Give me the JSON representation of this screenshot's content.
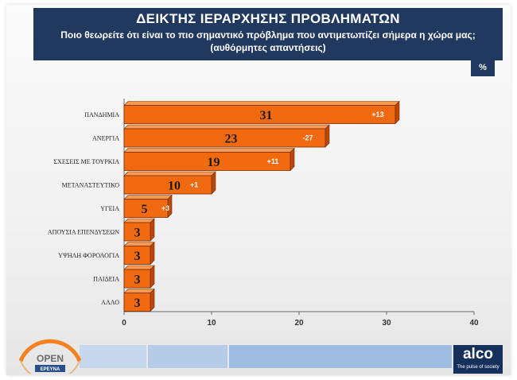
{
  "header": {
    "title": "ΔΕΙΚΤΗΣ ΙΕΡΑΡΧΗΣΗΣ ΠΡΟΒΛΗΜΑΤΩΝ",
    "subtitle": "Ποιο θεωρείτε ότι είναι το πιο σημαντικό πρόβλημα που αντιμετωπίζει σήμερα η χώρα μας;",
    "note": "(αυθόρμητες απαντήσεις)"
  },
  "unit_badge": "%",
  "logos": {
    "open_text": "OPEN",
    "open_sub": "ΕΡΕΥΝΑ",
    "alco_name": "alco",
    "alco_tag": "The pulse of society"
  },
  "colors": {
    "bar": "#f26a10",
    "bar_edge": "#7a2e02",
    "header_bg": "#22395f",
    "change_text": "#ffffff"
  },
  "chart_data": {
    "type": "bar",
    "orientation": "horizontal",
    "categories": [
      "ΠΑΝΔΗΜΙΑ",
      "ΑΝΕΡΓΙΑ",
      "ΣΧΕΣΕΙΣ ΜΕ ΤΟΥΡΚΙΑ",
      "ΜΕΤΑΝΑΣΤΕΥΤΙΚΟ",
      "ΥΓΕΙΑ",
      "ΑΠΟΥΣΙΑ ΕΠΕΝΔΥΣΕΩΝ",
      "ΥΨΗΛΗ ΦΟΡΟΛΟΓΙΑ",
      "ΠΑΙΔΕΙΑ",
      "ΑΛΛΟ"
    ],
    "values": [
      31,
      23,
      19,
      10,
      5,
      3,
      3,
      3,
      3
    ],
    "value_labels": [
      "31",
      "23",
      "19",
      "10",
      "5",
      "3",
      "3",
      "3",
      "3"
    ],
    "changes": [
      "+13",
      "-27",
      "+11",
      "+1",
      "+3",
      "",
      "",
      "",
      ""
    ],
    "xlim": [
      0,
      40
    ],
    "xticks": [
      "0",
      "10",
      "20",
      "30",
      "40"
    ],
    "grid": false,
    "legend": "none"
  }
}
